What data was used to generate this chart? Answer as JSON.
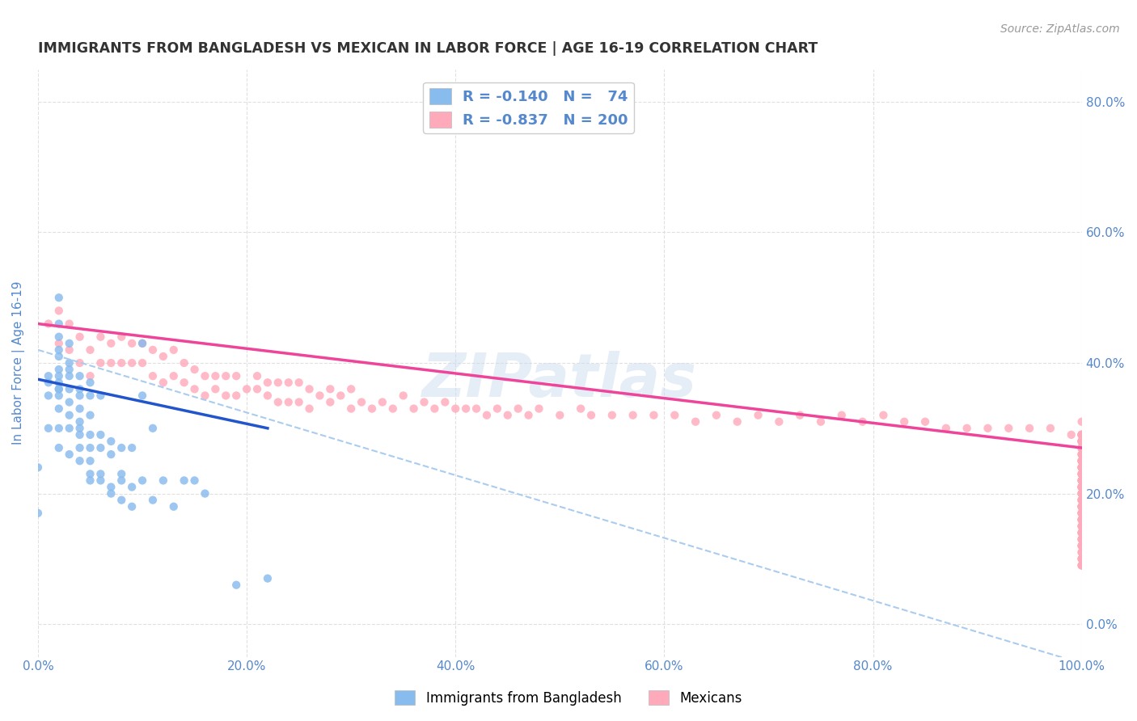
{
  "title": "IMMIGRANTS FROM BANGLADESH VS MEXICAN IN LABOR FORCE | AGE 16-19 CORRELATION CHART",
  "source": "Source: ZipAtlas.com",
  "ylabel": "In Labor Force | Age 16-19",
  "xlim": [
    0.0,
    1.0
  ],
  "ylim": [
    -0.05,
    0.85
  ],
  "x_ticks": [
    0.0,
    0.2,
    0.4,
    0.6,
    0.8,
    1.0
  ],
  "y_ticks": [
    0.0,
    0.2,
    0.4,
    0.6,
    0.8
  ],
  "bangladesh_color": "#88bbee",
  "mexican_color": "#ffaabb",
  "bangladesh_trend_color": "#2255cc",
  "mexican_trend_color": "#ee4499",
  "dashed_line_color": "#aaccee",
  "watermark": "ZIPatlas",
  "background_color": "#ffffff",
  "grid_color": "#dddddd",
  "title_color": "#333333",
  "tick_color": "#5588cc",
  "bangladesh_scatter_x": [
    0.0,
    0.0,
    0.01,
    0.01,
    0.01,
    0.01,
    0.02,
    0.02,
    0.02,
    0.02,
    0.02,
    0.02,
    0.02,
    0.02,
    0.02,
    0.02,
    0.02,
    0.02,
    0.02,
    0.02,
    0.03,
    0.03,
    0.03,
    0.03,
    0.03,
    0.03,
    0.03,
    0.03,
    0.03,
    0.04,
    0.04,
    0.04,
    0.04,
    0.04,
    0.04,
    0.04,
    0.04,
    0.04,
    0.05,
    0.05,
    0.05,
    0.05,
    0.05,
    0.05,
    0.05,
    0.05,
    0.06,
    0.06,
    0.06,
    0.06,
    0.06,
    0.07,
    0.07,
    0.07,
    0.07,
    0.08,
    0.08,
    0.08,
    0.08,
    0.09,
    0.09,
    0.09,
    0.1,
    0.1,
    0.1,
    0.11,
    0.11,
    0.12,
    0.13,
    0.14,
    0.15,
    0.16,
    0.19,
    0.22
  ],
  "bangladesh_scatter_y": [
    0.17,
    0.24,
    0.3,
    0.35,
    0.37,
    0.38,
    0.27,
    0.3,
    0.33,
    0.35,
    0.36,
    0.36,
    0.37,
    0.38,
    0.39,
    0.41,
    0.42,
    0.44,
    0.46,
    0.5,
    0.26,
    0.3,
    0.32,
    0.34,
    0.36,
    0.38,
    0.39,
    0.4,
    0.43,
    0.25,
    0.27,
    0.29,
    0.3,
    0.31,
    0.33,
    0.35,
    0.36,
    0.38,
    0.22,
    0.23,
    0.25,
    0.27,
    0.29,
    0.32,
    0.35,
    0.37,
    0.22,
    0.23,
    0.27,
    0.29,
    0.35,
    0.2,
    0.21,
    0.26,
    0.28,
    0.19,
    0.22,
    0.23,
    0.27,
    0.18,
    0.21,
    0.27,
    0.22,
    0.35,
    0.43,
    0.19,
    0.3,
    0.22,
    0.18,
    0.22,
    0.22,
    0.2,
    0.06,
    0.07
  ],
  "mexican_scatter_x": [
    0.01,
    0.02,
    0.02,
    0.03,
    0.03,
    0.04,
    0.04,
    0.05,
    0.05,
    0.06,
    0.06,
    0.07,
    0.07,
    0.08,
    0.08,
    0.09,
    0.09,
    0.1,
    0.1,
    0.11,
    0.11,
    0.12,
    0.12,
    0.13,
    0.13,
    0.14,
    0.14,
    0.15,
    0.15,
    0.16,
    0.16,
    0.17,
    0.17,
    0.18,
    0.18,
    0.19,
    0.19,
    0.2,
    0.21,
    0.21,
    0.22,
    0.22,
    0.23,
    0.23,
    0.24,
    0.24,
    0.25,
    0.25,
    0.26,
    0.26,
    0.27,
    0.28,
    0.28,
    0.29,
    0.3,
    0.3,
    0.31,
    0.32,
    0.33,
    0.34,
    0.35,
    0.36,
    0.37,
    0.38,
    0.39,
    0.4,
    0.41,
    0.42,
    0.43,
    0.44,
    0.45,
    0.46,
    0.47,
    0.48,
    0.5,
    0.52,
    0.53,
    0.55,
    0.57,
    0.59,
    0.61,
    0.63,
    0.65,
    0.67,
    0.69,
    0.71,
    0.73,
    0.75,
    0.77,
    0.79,
    0.81,
    0.83,
    0.85,
    0.87,
    0.89,
    0.91,
    0.93,
    0.95,
    0.97,
    0.99,
    1.0,
    1.0,
    1.0,
    1.0,
    1.0,
    1.0,
    1.0,
    1.0,
    1.0,
    1.0,
    1.0,
    1.0,
    1.0,
    1.0,
    1.0,
    1.0,
    1.0,
    1.0,
    1.0,
    1.0,
    1.0,
    1.0,
    1.0,
    1.0,
    1.0,
    1.0,
    1.0,
    1.0,
    1.0,
    1.0,
    1.0,
    1.0,
    1.0,
    1.0,
    1.0,
    1.0,
    1.0,
    1.0,
    1.0,
    1.0,
    1.0,
    1.0,
    1.0,
    1.0,
    1.0,
    1.0,
    1.0,
    1.0,
    1.0,
    1.0,
    1.0,
    1.0,
    1.0,
    1.0,
    1.0,
    1.0,
    1.0,
    1.0,
    1.0,
    1.0,
    1.0,
    1.0,
    1.0,
    1.0,
    1.0,
    1.0,
    1.0,
    1.0,
    1.0,
    1.0,
    1.0,
    1.0,
    1.0,
    1.0,
    1.0,
    1.0,
    1.0,
    1.0,
    1.0,
    1.0,
    1.0,
    1.0,
    1.0,
    1.0,
    1.0,
    1.0,
    1.0,
    1.0,
    1.0,
    1.0,
    1.0
  ],
  "mexican_scatter_y": [
    0.46,
    0.43,
    0.48,
    0.42,
    0.46,
    0.4,
    0.44,
    0.38,
    0.42,
    0.4,
    0.44,
    0.4,
    0.43,
    0.4,
    0.44,
    0.4,
    0.43,
    0.4,
    0.43,
    0.38,
    0.42,
    0.37,
    0.41,
    0.38,
    0.42,
    0.37,
    0.4,
    0.36,
    0.39,
    0.35,
    0.38,
    0.36,
    0.38,
    0.35,
    0.38,
    0.35,
    0.38,
    0.36,
    0.36,
    0.38,
    0.35,
    0.37,
    0.34,
    0.37,
    0.34,
    0.37,
    0.34,
    0.37,
    0.33,
    0.36,
    0.35,
    0.34,
    0.36,
    0.35,
    0.33,
    0.36,
    0.34,
    0.33,
    0.34,
    0.33,
    0.35,
    0.33,
    0.34,
    0.33,
    0.34,
    0.33,
    0.33,
    0.33,
    0.32,
    0.33,
    0.32,
    0.33,
    0.32,
    0.33,
    0.32,
    0.33,
    0.32,
    0.32,
    0.32,
    0.32,
    0.32,
    0.31,
    0.32,
    0.31,
    0.32,
    0.31,
    0.32,
    0.31,
    0.32,
    0.31,
    0.32,
    0.31,
    0.31,
    0.3,
    0.3,
    0.3,
    0.3,
    0.3,
    0.3,
    0.29,
    0.29,
    0.29,
    0.29,
    0.29,
    0.29,
    0.29,
    0.28,
    0.28,
    0.28,
    0.28,
    0.28,
    0.28,
    0.27,
    0.27,
    0.27,
    0.27,
    0.27,
    0.27,
    0.26,
    0.26,
    0.26,
    0.25,
    0.25,
    0.25,
    0.25,
    0.24,
    0.24,
    0.24,
    0.24,
    0.24,
    0.23,
    0.23,
    0.23,
    0.23,
    0.22,
    0.22,
    0.22,
    0.22,
    0.21,
    0.21,
    0.21,
    0.21,
    0.21,
    0.2,
    0.2,
    0.2,
    0.2,
    0.19,
    0.19,
    0.19,
    0.18,
    0.18,
    0.18,
    0.18,
    0.17,
    0.17,
    0.17,
    0.17,
    0.16,
    0.16,
    0.16,
    0.15,
    0.15,
    0.15,
    0.14,
    0.14,
    0.14,
    0.13,
    0.13,
    0.13,
    0.12,
    0.12,
    0.11,
    0.11,
    0.1,
    0.1,
    0.09,
    0.09,
    0.09,
    0.1,
    0.12,
    0.14,
    0.16,
    0.18,
    0.19,
    0.21,
    0.23,
    0.25,
    0.27,
    0.29,
    0.31
  ],
  "bangladesh_trend_x": [
    0.0,
    0.22
  ],
  "bangladesh_trend_y": [
    0.375,
    0.3
  ],
  "mexican_trend_x": [
    0.0,
    1.0
  ],
  "mexican_trend_y": [
    0.46,
    0.27
  ],
  "dashed_trend_x": [
    0.0,
    1.0
  ],
  "dashed_trend_y": [
    0.42,
    -0.06
  ]
}
